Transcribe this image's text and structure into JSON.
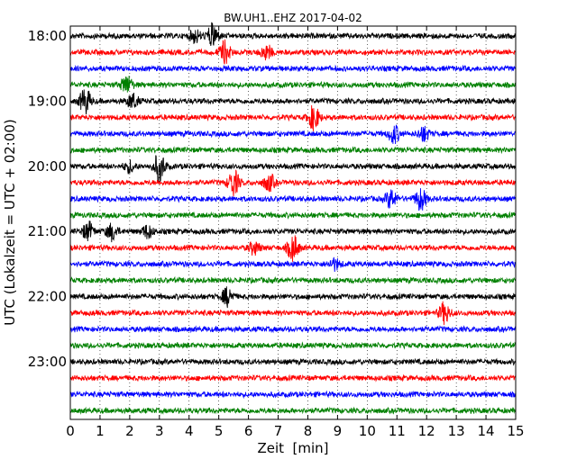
{
  "chart_data": {
    "type": "line",
    "title": "BW.UH1..EHZ 2017-04-02",
    "xlabel": "Zeit  [min]",
    "ylabel": "UTC (Lokalzeit = UTC + 02:00)",
    "xlim": [
      0,
      15
    ],
    "x_ticks": [
      0,
      1,
      2,
      3,
      4,
      5,
      6,
      7,
      8,
      9,
      10,
      11,
      12,
      13,
      14,
      15
    ],
    "x_tick_labels": [
      "0",
      "1",
      "2",
      "3",
      "4",
      "5",
      "6",
      "7",
      "8",
      "9",
      "10",
      "11",
      "12",
      "13",
      "14",
      "15"
    ],
    "y_tick_labels": [
      "18:00",
      "19:00",
      "20:00",
      "21:00",
      "22:00",
      "23:00"
    ],
    "y_tick_rows": [
      0,
      4,
      8,
      12,
      16,
      20
    ],
    "row_count": 24,
    "color_cycle": [
      "#000000",
      "#ff0000",
      "#0000ff",
      "#008000"
    ],
    "grid": "vertical-dotted",
    "bursts": [
      {
        "row": 0,
        "min": 4.8,
        "amp": 13
      },
      {
        "row": 0,
        "min": 4.2,
        "amp": 7
      },
      {
        "row": 1,
        "min": 5.2,
        "amp": 12
      },
      {
        "row": 1,
        "min": 6.6,
        "amp": 8
      },
      {
        "row": 3,
        "min": 1.9,
        "amp": 10
      },
      {
        "row": 4,
        "min": 0.5,
        "amp": 14
      },
      {
        "row": 4,
        "min": 2.1,
        "amp": 8
      },
      {
        "row": 5,
        "min": 8.2,
        "amp": 13
      },
      {
        "row": 6,
        "min": 10.9,
        "amp": 10
      },
      {
        "row": 6,
        "min": 11.9,
        "amp": 8
      },
      {
        "row": 8,
        "min": 3.0,
        "amp": 16
      },
      {
        "row": 8,
        "min": 2.0,
        "amp": 6
      },
      {
        "row": 9,
        "min": 5.5,
        "amp": 14
      },
      {
        "row": 9,
        "min": 6.7,
        "amp": 9
      },
      {
        "row": 10,
        "min": 10.8,
        "amp": 10
      },
      {
        "row": 10,
        "min": 11.8,
        "amp": 12
      },
      {
        "row": 12,
        "min": 0.6,
        "amp": 10
      },
      {
        "row": 12,
        "min": 1.4,
        "amp": 9
      },
      {
        "row": 12,
        "min": 2.6,
        "amp": 7
      },
      {
        "row": 13,
        "min": 7.5,
        "amp": 14
      },
      {
        "row": 13,
        "min": 6.2,
        "amp": 7
      },
      {
        "row": 14,
        "min": 8.9,
        "amp": 6
      },
      {
        "row": 16,
        "min": 5.3,
        "amp": 10
      },
      {
        "row": 17,
        "min": 12.6,
        "amp": 11
      }
    ]
  }
}
